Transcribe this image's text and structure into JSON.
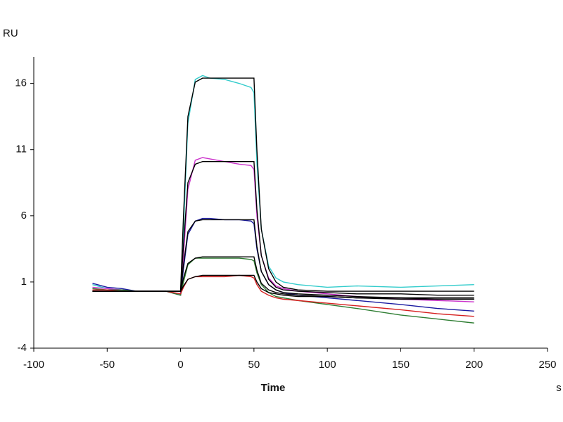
{
  "chart_data": {
    "type": "line",
    "y_label": "RU",
    "x_label": "Time",
    "x_unit": "s",
    "xlim": [
      -100,
      250
    ],
    "xticks": [
      -100,
      -50,
      0,
      50,
      100,
      150,
      200,
      250
    ],
    "ylim": [
      -4,
      18
    ],
    "yticks": [
      -4,
      1,
      6,
      11,
      16
    ],
    "x": [
      -60,
      -50,
      -40,
      -30,
      -20,
      -10,
      0,
      2,
      5,
      10,
      15,
      20,
      30,
      40,
      48,
      50,
      52,
      55,
      60,
      65,
      70,
      80,
      100,
      120,
      150,
      175,
      200
    ],
    "series": [
      {
        "color": "#33cccc",
        "values": [
          0.8,
          0.5,
          0.4,
          0.3,
          0.3,
          0.3,
          0.1,
          5,
          13,
          16.3,
          16.6,
          16.4,
          16.3,
          16,
          15.7,
          15.3,
          10,
          5,
          2.2,
          1.3,
          1,
          0.8,
          0.6,
          0.7,
          0.6,
          0.7,
          0.8
        ]
      },
      {
        "color": "#cc33cc",
        "values": [
          0.6,
          0.5,
          0.4,
          0.3,
          0.3,
          0.3,
          0.1,
          3,
          8,
          10.2,
          10.4,
          10.3,
          10.1,
          9.9,
          9.8,
          9.5,
          6,
          3,
          1.3,
          0.7,
          0.5,
          0.3,
          0.1,
          -0.1,
          -0.3,
          -0.4,
          -0.5
        ]
      },
      {
        "color": "#1a1aa0",
        "values": [
          0.9,
          0.6,
          0.5,
          0.3,
          0.3,
          0.3,
          0,
          2,
          4.6,
          5.6,
          5.8,
          5.8,
          5.7,
          5.7,
          5.6,
          5.4,
          3.5,
          1.8,
          0.8,
          0.4,
          0.2,
          0,
          -0.2,
          -0.4,
          -0.7,
          -1,
          -1.2
        ]
      },
      {
        "color": "#2e7d32",
        "values": [
          0.5,
          0.4,
          0.4,
          0.3,
          0.3,
          0.3,
          0,
          1,
          2.3,
          2.8,
          2.8,
          2.8,
          2.8,
          2.8,
          2.7,
          2.6,
          1.7,
          0.8,
          0.2,
          -0.1,
          -0.2,
          -0.4,
          -0.7,
          -1,
          -1.5,
          -1.8,
          -2.1
        ]
      },
      {
        "color": "#d62020",
        "values": [
          0.4,
          0.4,
          0.3,
          0.3,
          0.3,
          0.3,
          0.1,
          0.6,
          1.2,
          1.4,
          1.4,
          1.4,
          1.4,
          1.5,
          1.4,
          1.3,
          0.8,
          0.3,
          0,
          -0.2,
          -0.3,
          -0.4,
          -0.6,
          -0.8,
          -1.1,
          -1.4,
          -1.6
        ]
      },
      {
        "color": "#000000",
        "values": [
          0.3,
          0.3,
          0.3,
          0.3,
          0.3,
          0.3,
          0.3,
          6,
          13.5,
          16.1,
          16.4,
          16.4,
          16.4,
          16.4,
          16.4,
          16.4,
          11,
          5,
          2,
          1,
          0.6,
          0.4,
          0.3,
          0.3,
          0.3,
          0.3,
          0.3
        ]
      },
      {
        "color": "#000000",
        "values": [
          0.3,
          0.3,
          0.3,
          0.3,
          0.3,
          0.3,
          0.3,
          3.8,
          8.5,
          9.9,
          10.1,
          10.1,
          10.1,
          10.1,
          10.1,
          10.1,
          6.5,
          3,
          1.2,
          0.6,
          0.4,
          0.3,
          0.2,
          0.1,
          0.1,
          0,
          0
        ]
      },
      {
        "color": "#000000",
        "values": [
          0.3,
          0.3,
          0.3,
          0.3,
          0.3,
          0.3,
          0.3,
          2.3,
          4.8,
          5.6,
          5.7,
          5.7,
          5.7,
          5.7,
          5.7,
          5.7,
          3.7,
          1.8,
          0.8,
          0.4,
          0.2,
          0.1,
          0,
          -0.1,
          -0.2,
          -0.3,
          -0.3
        ]
      },
      {
        "color": "#000000",
        "values": [
          0.3,
          0.3,
          0.3,
          0.3,
          0.3,
          0.3,
          0.3,
          1.3,
          2.4,
          2.8,
          2.9,
          2.9,
          2.9,
          2.9,
          2.9,
          2.9,
          1.9,
          0.9,
          0.4,
          0.2,
          0.1,
          0,
          -0.1,
          -0.2,
          -0.3,
          -0.3,
          -0.3
        ]
      },
      {
        "color": "#000000",
        "values": [
          0.3,
          0.3,
          0.3,
          0.3,
          0.3,
          0.3,
          0.3,
          0.7,
          1.2,
          1.4,
          1.5,
          1.5,
          1.5,
          1.5,
          1.5,
          1.5,
          1,
          0.5,
          0.2,
          0.1,
          0,
          -0.1,
          -0.1,
          -0.2,
          -0.2,
          -0.2,
          -0.2
        ]
      }
    ]
  }
}
